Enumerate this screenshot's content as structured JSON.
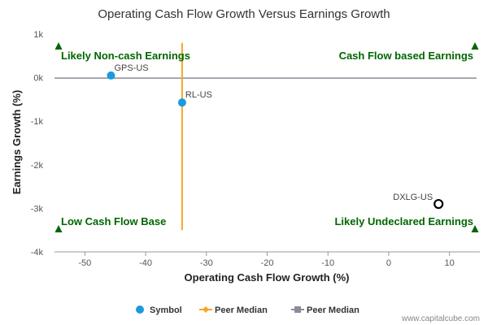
{
  "chart_data": {
    "type": "scatter",
    "title": "Operating Cash Flow Growth Versus Earnings Growth",
    "xlabel": "Operating Cash Flow Growth (%)",
    "ylabel": "Earnings Growth (%)",
    "xlim": [
      -55,
      15
    ],
    "ylim": [
      -4000,
      1000
    ],
    "x_ticks": [
      {
        "value": -50,
        "label": "-50"
      },
      {
        "value": -40,
        "label": "-40"
      },
      {
        "value": -30,
        "label": "-30"
      },
      {
        "value": -20,
        "label": "-20"
      },
      {
        "value": -10,
        "label": "-10"
      },
      {
        "value": 0,
        "label": "0"
      },
      {
        "value": 10,
        "label": "10"
      }
    ],
    "y_ticks": [
      {
        "value": 1000,
        "label": "1k"
      },
      {
        "value": 0,
        "label": "0k"
      },
      {
        "value": -1000,
        "label": "-1k"
      },
      {
        "value": -2000,
        "label": "-2k"
      },
      {
        "value": -3000,
        "label": "-3k"
      },
      {
        "value": -4000,
        "label": "-4k"
      }
    ],
    "points": [
      {
        "label": "GPS-US",
        "x": -45.7,
        "y": 50,
        "style": "filled"
      },
      {
        "label": "RL-US",
        "x": -34,
        "y": -570,
        "style": "filled"
      },
      {
        "label": "DXLG-US",
        "x": 8.2,
        "y": -2900,
        "style": "hollow"
      }
    ],
    "peer_median_x": -34,
    "peer_median_y": -10,
    "quadrants": {
      "top_left": "Likely Non-cash Earnings",
      "top_right": "Cash Flow based Earnings",
      "bottom_left": "Low Cash Flow Base",
      "bottom_right": "Likely Undeclared Earnings"
    },
    "legend": [
      {
        "label": "Symbol",
        "marker": "circle",
        "color": "#1a9be0"
      },
      {
        "label": "Peer Median",
        "marker": "diamond-line",
        "color": "#f5a623"
      },
      {
        "label": "Peer Median",
        "marker": "square-line",
        "color": "#8c8c9a"
      }
    ],
    "legend_position": "bottom-center",
    "grid": false
  },
  "colors": {
    "symbol": "#1a9be0",
    "peer_x_line": "#f5a623",
    "peer_y_line": "#8c8c9a",
    "quadrant_text": "#006600",
    "axis": "#999999"
  },
  "credit": "www.capitalcube.com"
}
